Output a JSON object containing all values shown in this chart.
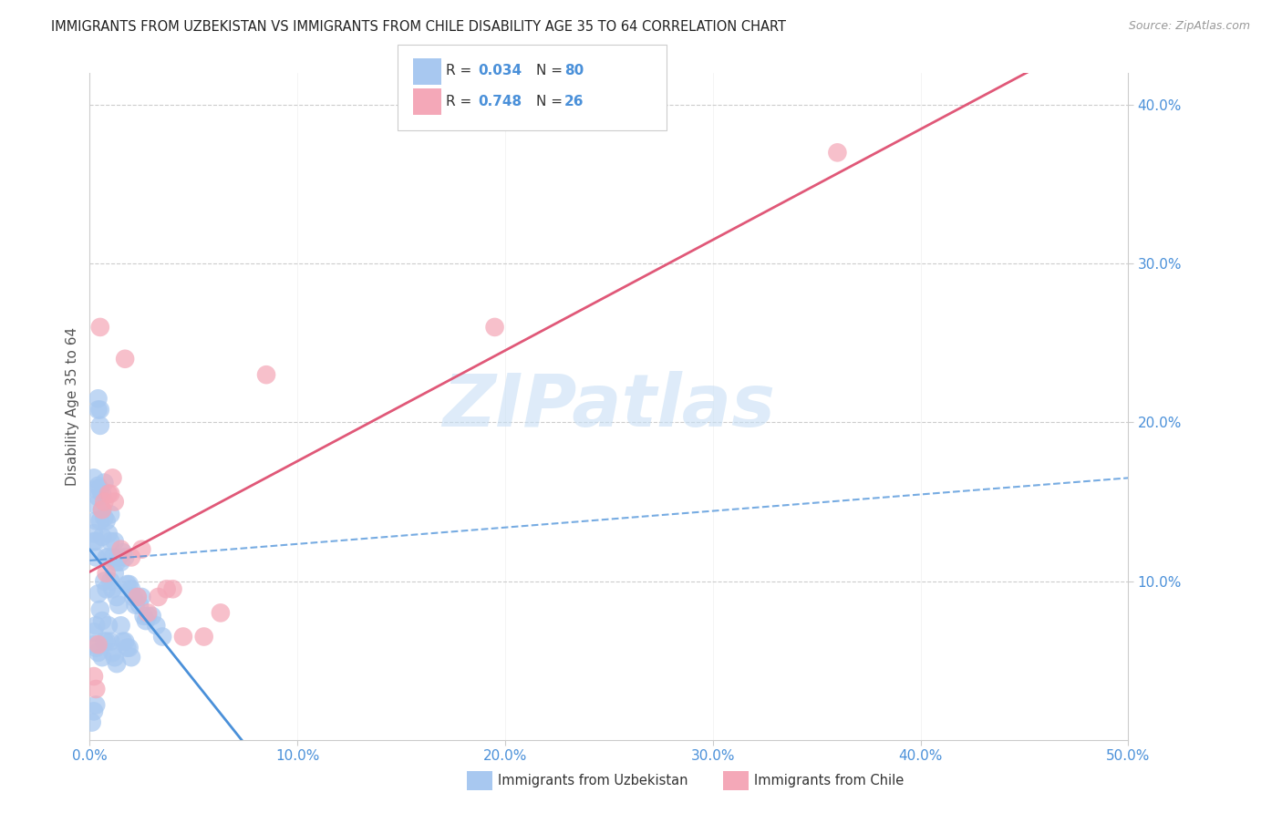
{
  "title": "IMMIGRANTS FROM UZBEKISTAN VS IMMIGRANTS FROM CHILE DISABILITY AGE 35 TO 64 CORRELATION CHART",
  "source": "Source: ZipAtlas.com",
  "ylabel": "Disability Age 35 to 64",
  "xlim": [
    0.0,
    0.5
  ],
  "ylim": [
    0.0,
    0.42
  ],
  "xticks": [
    0.0,
    0.1,
    0.2,
    0.3,
    0.4,
    0.5
  ],
  "yticks": [
    0.1,
    0.2,
    0.3,
    0.4
  ],
  "xtick_labels": [
    "0.0%",
    "10.0%",
    "20.0%",
    "30.0%",
    "40.0%",
    "50.0%"
  ],
  "ytick_labels": [
    "10.0%",
    "20.0%",
    "30.0%",
    "40.0%"
  ],
  "uzbekistan_color": "#a8c8f0",
  "chile_color": "#f4a8b8",
  "uzbekistan_line_color": "#4a90d9",
  "chile_line_color": "#e05878",
  "tick_color": "#4a90d9",
  "uzbekistan_R": 0.034,
  "uzbekistan_N": 80,
  "chile_R": 0.748,
  "chile_N": 26,
  "watermark_text": "ZIPatlas",
  "watermark_color": "#c8dff5",
  "background_color": "#ffffff",
  "grid_color": "#cccccc",
  "legend_box_color": "#cccccc",
  "source_color": "#999999",
  "ylabel_color": "#555555",
  "legend_text_color": "#333333",
  "bottom_legend_color": "#333333",
  "uz_x": [
    0.001,
    0.002,
    0.002,
    0.002,
    0.002,
    0.003,
    0.003,
    0.003,
    0.003,
    0.003,
    0.003,
    0.004,
    0.004,
    0.004,
    0.004,
    0.004,
    0.004,
    0.005,
    0.005,
    0.005,
    0.005,
    0.005,
    0.006,
    0.006,
    0.006,
    0.006,
    0.006,
    0.007,
    0.007,
    0.007,
    0.007,
    0.008,
    0.008,
    0.008,
    0.008,
    0.009,
    0.009,
    0.009,
    0.01,
    0.01,
    0.01,
    0.01,
    0.011,
    0.011,
    0.011,
    0.012,
    0.012,
    0.012,
    0.013,
    0.013,
    0.013,
    0.014,
    0.014,
    0.015,
    0.015,
    0.016,
    0.016,
    0.017,
    0.017,
    0.018,
    0.018,
    0.019,
    0.019,
    0.02,
    0.02,
    0.021,
    0.022,
    0.023,
    0.024,
    0.025,
    0.026,
    0.027,
    0.028,
    0.03,
    0.032,
    0.035,
    0.002,
    0.003,
    0.003,
    0.002
  ],
  "uz_y": [
    0.011,
    0.165,
    0.06,
    0.13,
    0.068,
    0.158,
    0.148,
    0.138,
    0.072,
    0.058,
    0.022,
    0.215,
    0.208,
    0.16,
    0.153,
    0.092,
    0.055,
    0.208,
    0.198,
    0.158,
    0.138,
    0.082,
    0.155,
    0.145,
    0.128,
    0.075,
    0.052,
    0.162,
    0.14,
    0.1,
    0.062,
    0.138,
    0.115,
    0.095,
    0.062,
    0.13,
    0.115,
    0.072,
    0.142,
    0.125,
    0.1,
    0.062,
    0.115,
    0.095,
    0.055,
    0.125,
    0.105,
    0.052,
    0.112,
    0.09,
    0.048,
    0.115,
    0.085,
    0.112,
    0.072,
    0.118,
    0.062,
    0.115,
    0.062,
    0.098,
    0.058,
    0.098,
    0.058,
    0.095,
    0.052,
    0.09,
    0.085,
    0.09,
    0.085,
    0.09,
    0.078,
    0.075,
    0.078,
    0.078,
    0.072,
    0.065,
    0.125,
    0.125,
    0.115,
    0.018
  ],
  "ch_x": [
    0.002,
    0.003,
    0.004,
    0.005,
    0.006,
    0.007,
    0.008,
    0.009,
    0.01,
    0.011,
    0.012,
    0.015,
    0.017,
    0.02,
    0.023,
    0.025,
    0.028,
    0.033,
    0.037,
    0.04,
    0.045,
    0.055,
    0.063,
    0.085,
    0.195,
    0.36
  ],
  "ch_y": [
    0.04,
    0.032,
    0.06,
    0.26,
    0.145,
    0.15,
    0.105,
    0.155,
    0.155,
    0.165,
    0.15,
    0.12,
    0.24,
    0.115,
    0.09,
    0.12,
    0.08,
    0.09,
    0.095,
    0.095,
    0.065,
    0.065,
    0.08,
    0.23,
    0.26,
    0.37
  ],
  "uz_regression": [
    0.0,
    0.5,
    0.108,
    0.115
  ],
  "uz_ci_upper": [
    0.0,
    0.5,
    0.12,
    0.165
  ],
  "ch_regression": [
    -0.03,
    0.5,
    -0.025,
    0.395
  ]
}
